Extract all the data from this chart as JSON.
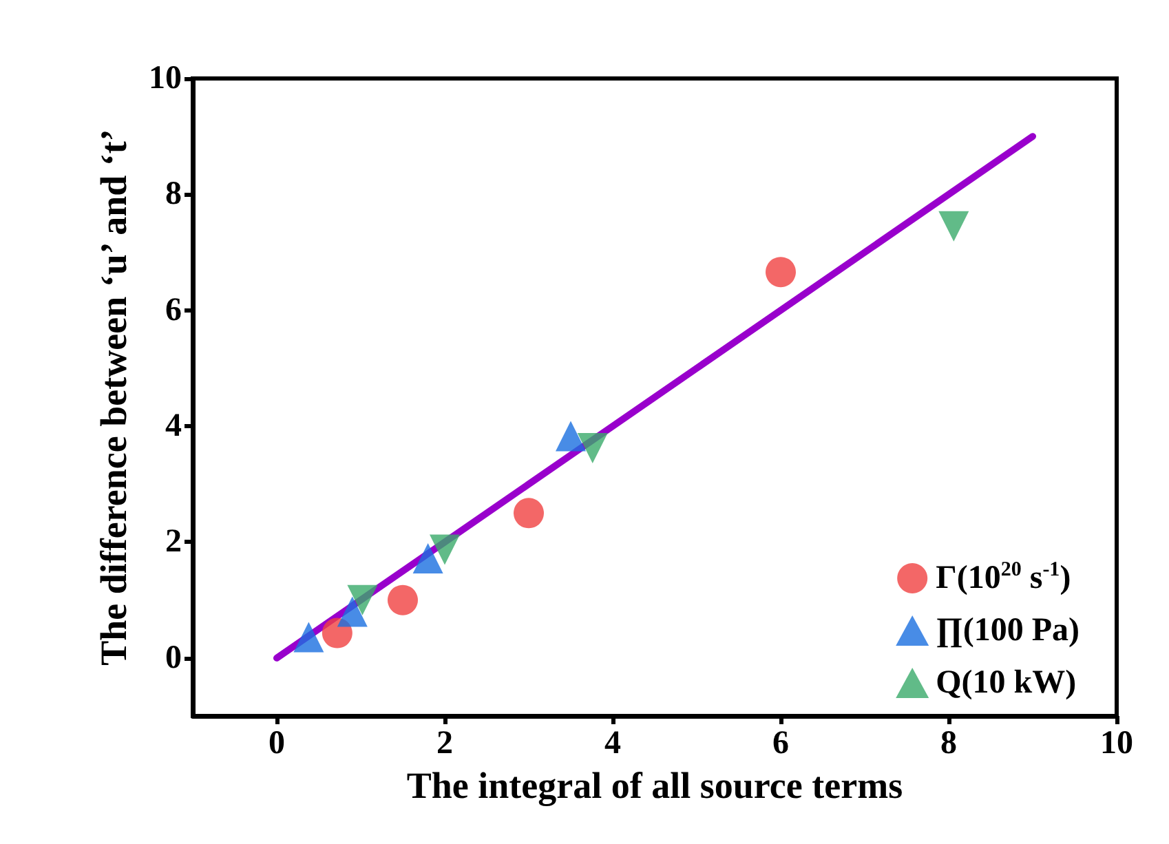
{
  "chart_data": {
    "type": "scatter",
    "xlabel": "The integral of all source terms",
    "ylabel": "The difference between ‘u’ and ‘t’",
    "xlim": [
      -1,
      10
    ],
    "xticks": [
      0,
      2,
      4,
      6,
      8,
      10
    ],
    "ylim": [
      -1,
      10
    ],
    "yticks": [
      0,
      2,
      4,
      6,
      8,
      10
    ],
    "grid": false,
    "legend": "bottom right",
    "series": [
      {
        "name": "Γ(10$^{20}$ s$^{-1}$)",
        "color": "#f04141",
        "marker": "circle",
        "x": [
          0.72,
          1.5,
          3.0,
          6.0
        ],
        "values": [
          0.43,
          1.0,
          2.5,
          6.66
        ]
      },
      {
        "name": "∏(100 Pa)",
        "color": "#1a6fe0",
        "marker": "triangle",
        "x": [
          0.38,
          0.9,
          1.8,
          3.5
        ],
        "values": [
          0.36,
          0.8,
          1.72,
          3.83
        ]
      },
      {
        "name": "Q(10 kW)",
        "color": "#3aaa6a",
        "marker": "triangle-down",
        "x": [
          1.02,
          2.0,
          3.76,
          8.06
        ],
        "values": [
          1.0,
          1.87,
          3.62,
          7.45
        ]
      },
      {
        "type": "line",
        "color": "#9900cc",
        "marker": "none",
        "line_style": "solid",
        "x": [
          0,
          9
        ],
        "values": [
          0,
          9
        ]
      }
    ]
  }
}
